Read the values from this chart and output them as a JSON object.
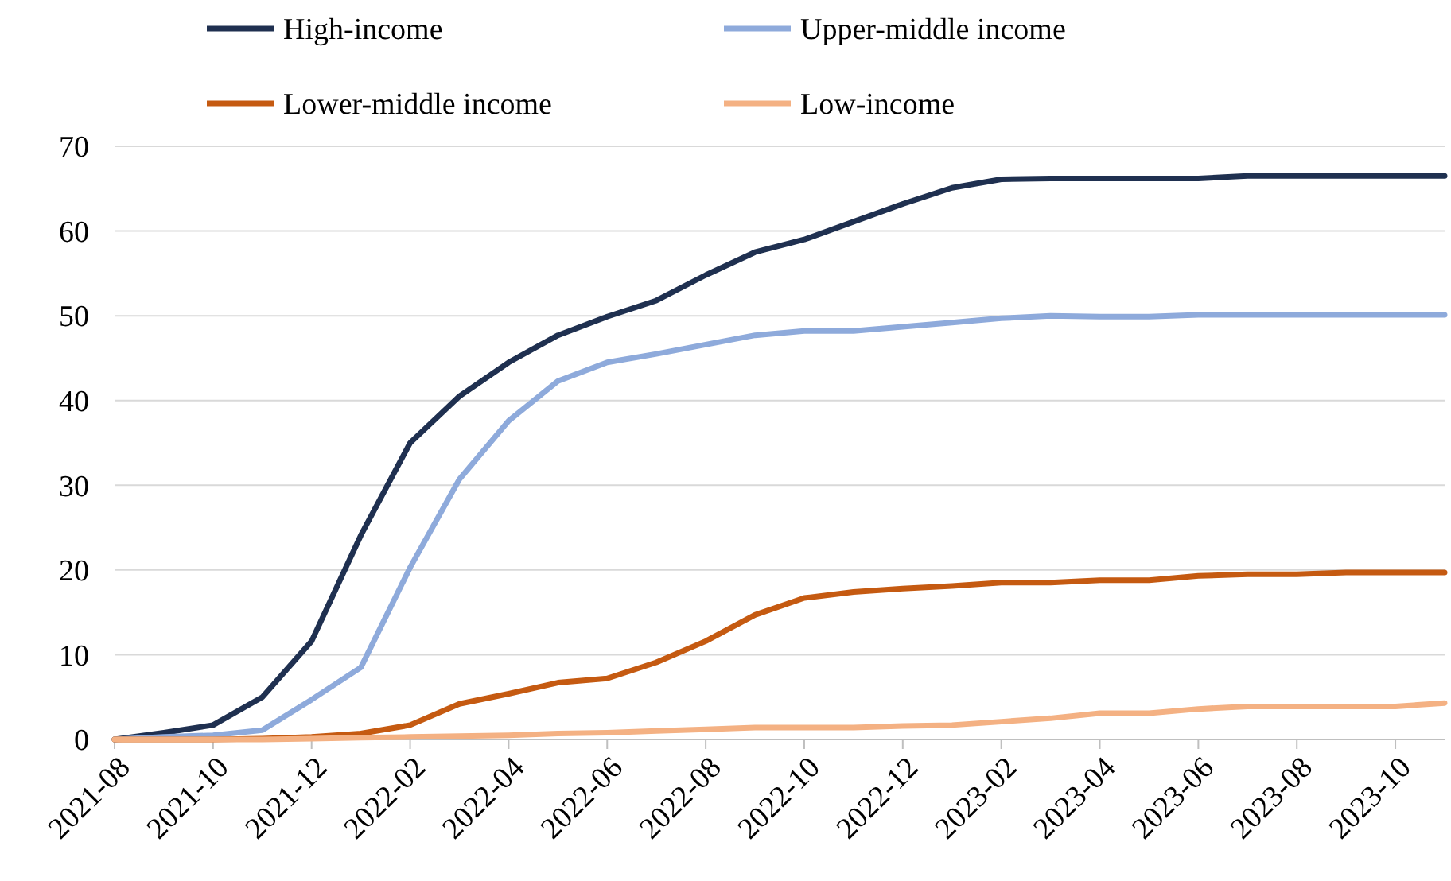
{
  "chart_data": {
    "type": "line",
    "categories": [
      "2021-08",
      null,
      "2021-10",
      null,
      "2021-12",
      null,
      "2022-02",
      null,
      "2022-04",
      null,
      "2022-06",
      null,
      "2022-08",
      null,
      "2022-10",
      null,
      "2022-12",
      null,
      "2023-02",
      null,
      "2023-04",
      null,
      "2023-06",
      null,
      "2023-08",
      null,
      "2023-10",
      null
    ],
    "series": [
      {
        "name": "High-income",
        "color": "#1f3050",
        "values": [
          0,
          0.8,
          1.7,
          5.0,
          11.6,
          24.1,
          35,
          40.5,
          44.5,
          47.7,
          49.9,
          51.8,
          54.8,
          57.5,
          59.0,
          61.1,
          63.2,
          65.1,
          66.1,
          66.2,
          66.2,
          66.2,
          66.2,
          66.5,
          66.5,
          66.5,
          66.5,
          66.5
        ]
      },
      {
        "name": "Upper-middle income",
        "color": "#8eaadb",
        "values": [
          0,
          0.3,
          0.5,
          1.1,
          4.7,
          8.5,
          20.3,
          30.7,
          37.6,
          42.3,
          44.5,
          45.5,
          46.6,
          47.7,
          48.2,
          48.2,
          48.7,
          49.2,
          49.7,
          50.0,
          49.9,
          49.9,
          50.1,
          50.1,
          50.1,
          50.1,
          50.1,
          50.1
        ]
      },
      {
        "name": "Lower-middle income",
        "color": "#c55a11",
        "values": [
          0,
          0,
          0,
          0.1,
          0.3,
          0.7,
          1.7,
          4.2,
          5.4,
          6.7,
          7.2,
          9.1,
          11.6,
          14.7,
          16.7,
          17.4,
          17.8,
          18.1,
          18.5,
          18.5,
          18.8,
          18.8,
          19.3,
          19.5,
          19.5,
          19.7,
          19.7,
          19.7
        ]
      },
      {
        "name": "Low-income",
        "color": "#f4b183",
        "values": [
          0,
          0,
          0,
          0,
          0.1,
          0.2,
          0.3,
          0.4,
          0.5,
          0.7,
          0.8,
          1.0,
          1.2,
          1.4,
          1.4,
          1.4,
          1.6,
          1.7,
          2.1,
          2.5,
          3.1,
          3.1,
          3.6,
          3.9,
          3.9,
          3.9,
          3.9,
          4.3
        ]
      }
    ],
    "ylim": [
      0,
      70
    ],
    "yticks": [
      0,
      10,
      20,
      30,
      40,
      50,
      60,
      70
    ],
    "grid": "y",
    "legend": "top"
  }
}
